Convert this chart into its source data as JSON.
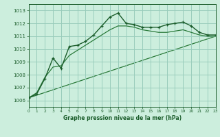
{
  "background_color": "#cceedd",
  "grid_color": "#99ccbb",
  "line_color_dark": "#1a5c2a",
  "line_color_mid": "#2a7a3a",
  "xlim": [
    0,
    23
  ],
  "ylim": [
    1005.5,
    1013.5
  ],
  "yticks": [
    1006,
    1007,
    1008,
    1009,
    1010,
    1011,
    1012,
    1013
  ],
  "xticks": [
    0,
    1,
    2,
    3,
    4,
    5,
    6,
    7,
    8,
    9,
    10,
    11,
    12,
    13,
    14,
    15,
    16,
    17,
    18,
    19,
    20,
    21,
    22,
    23
  ],
  "xtick_labels": [
    "0",
    "1",
    "2",
    "3",
    "4",
    "5",
    "6",
    "7",
    "8",
    "9",
    "10",
    "11",
    "12",
    "13",
    "14",
    "15",
    "16",
    "17",
    "18",
    "19",
    "20",
    "21",
    "22",
    "23"
  ],
  "ytick_labels": [
    "1006",
    "1007",
    "1008",
    "1009",
    "1010",
    "1011",
    "1012",
    "1013"
  ],
  "series1_x": [
    0,
    1,
    2,
    3,
    4,
    5,
    6,
    7,
    8,
    9,
    10,
    11,
    12,
    13,
    14,
    15,
    16,
    17,
    18,
    19,
    20,
    21,
    22,
    23
  ],
  "series1_y": [
    1006.2,
    1006.5,
    1007.7,
    1009.3,
    1008.5,
    1010.2,
    1010.3,
    1010.6,
    1011.1,
    1011.8,
    1012.5,
    1012.8,
    1012.0,
    1011.9,
    1011.7,
    1011.7,
    1011.7,
    1011.9,
    1012.0,
    1012.1,
    1011.8,
    1011.3,
    1011.1,
    1011.1
  ],
  "series2_x": [
    0,
    1,
    2,
    3,
    4,
    5,
    6,
    7,
    8,
    9,
    10,
    11,
    12,
    13,
    14,
    15,
    16,
    17,
    18,
    19,
    20,
    21,
    22,
    23
  ],
  "series2_y": [
    1006.2,
    1006.6,
    1007.8,
    1008.6,
    1008.7,
    1009.5,
    1009.9,
    1010.3,
    1010.7,
    1011.1,
    1011.5,
    1011.8,
    1011.8,
    1011.7,
    1011.5,
    1011.4,
    1011.3,
    1011.3,
    1011.4,
    1011.5,
    1011.3,
    1011.1,
    1011.0,
    1011.0
  ],
  "series3_x": [
    0,
    23
  ],
  "series3_y": [
    1006.2,
    1011.0
  ],
  "xlabel": "Graphe pression niveau de la mer (hPa)"
}
